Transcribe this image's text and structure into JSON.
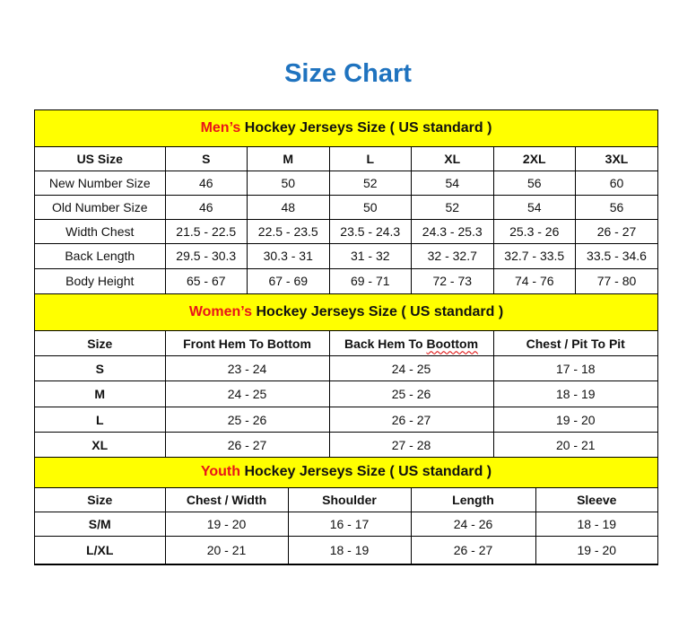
{
  "title": "Size Chart",
  "men": {
    "prefix": "Men’s",
    "heading": " Hockey Jerseys Size ( US standard )",
    "header": [
      "US Size",
      "S",
      "M",
      "L",
      "XL",
      "2XL",
      "3XL"
    ],
    "rows": [
      [
        "New Number Size",
        "46",
        "50",
        "52",
        "54",
        "56",
        "60"
      ],
      [
        "Old Number Size",
        "46",
        "48",
        "50",
        "52",
        "54",
        "56"
      ],
      [
        "Width Chest",
        "21.5 - 22.5",
        "22.5 - 23.5",
        "23.5 - 24.3",
        "24.3 - 25.3",
        "25.3 - 26",
        "26 - 27"
      ],
      [
        "Back Length",
        "29.5 - 30.3",
        "30.3 - 31",
        "31 - 32",
        "32 - 32.7",
        "32.7 - 33.5",
        "33.5 - 34.6"
      ],
      [
        "Body Height",
        "65 - 67",
        "67 - 69",
        "69 - 71",
        "72 - 73",
        "74 - 76",
        "77 - 80"
      ]
    ]
  },
  "women": {
    "prefix": "Women’s",
    "heading": " Hockey Jerseys Size ( US standard )",
    "header": [
      "Size",
      "Front Hem To Bottom",
      "Back Hem To Boottom",
      "Chest / Pit To Pit"
    ],
    "rows": [
      [
        "S",
        "23 - 24",
        "24 - 25",
        "17 - 18"
      ],
      [
        "M",
        "24 - 25",
        "25 - 26",
        "18 - 19"
      ],
      [
        "L",
        "25 - 26",
        "26 - 27",
        "19 - 20"
      ],
      [
        "XL",
        "26 - 27",
        "27 - 28",
        "20 - 21"
      ]
    ]
  },
  "youth": {
    "prefix": "Youth",
    "heading": " Hockey Jerseys Size ( US standard )",
    "header": [
      "Size",
      "Chest / Width",
      "Shoulder",
      "Length",
      "Sleeve"
    ],
    "rows": [
      [
        "S/M",
        "19 - 20",
        "16 - 17",
        "24 - 26",
        "18 - 19"
      ],
      [
        "L/XL",
        "20 - 21",
        "18 - 19",
        "26 - 27",
        "19 - 20"
      ]
    ]
  }
}
